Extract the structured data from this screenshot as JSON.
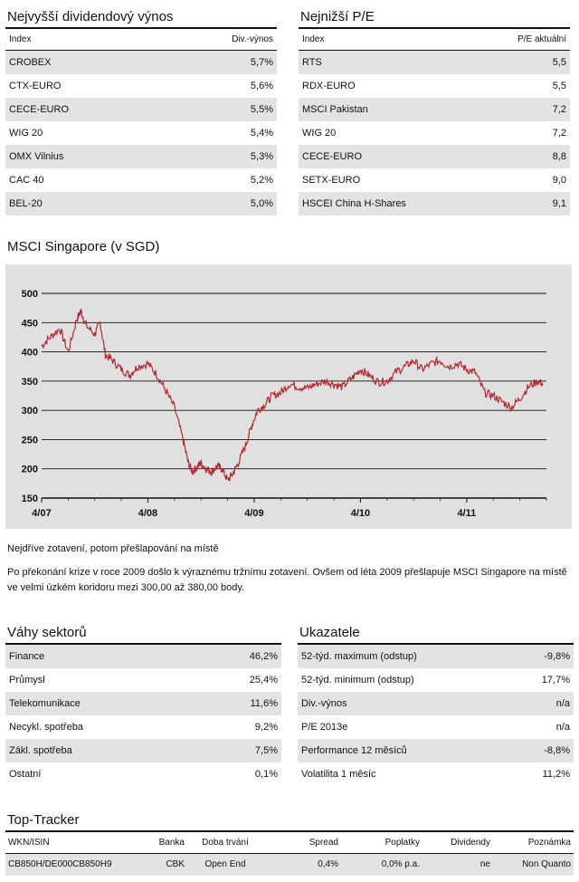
{
  "top_left": {
    "title": "Nejvyšší dividendový výnos",
    "col1": "Index",
    "col2": "Div.-výnos",
    "rows": [
      {
        "name": "CROBEX",
        "value": "5,7%"
      },
      {
        "name": "CTX-EURO",
        "value": "5,6%"
      },
      {
        "name": "CECE-EURO",
        "value": "5,5%"
      },
      {
        "name": "WIG 20",
        "value": "5,4%"
      },
      {
        "name": "OMX Vilnius",
        "value": "5,3%"
      },
      {
        "name": "CAC 40",
        "value": "5,2%"
      },
      {
        "name": "BEL-20",
        "value": "5,0%"
      }
    ]
  },
  "top_right": {
    "title": "Nejnižší P/E",
    "col1": "Index",
    "col2": "P/E aktuální",
    "rows": [
      {
        "name": "RTS",
        "value": "5,5"
      },
      {
        "name": "RDX-EURO",
        "value": "5,5"
      },
      {
        "name": "MSCI Pakistan",
        "value": "7,2"
      },
      {
        "name": "WIG 20",
        "value": "7,2"
      },
      {
        "name": "CECE-EURO",
        "value": "8,8"
      },
      {
        "name": "SETX-EURO",
        "value": "9,0"
      },
      {
        "name": "HSCEI China H-Shares",
        "value": "9,1"
      }
    ]
  },
  "chart_title": "MSCI Singapore (v SGD)",
  "chart_data": {
    "type": "line",
    "title": "MSCI Singapore (v SGD)",
    "x_ticks": [
      "4/07",
      "4/08",
      "4/09",
      "4/10",
      "4/11"
    ],
    "y_ticks": [
      "500",
      "450",
      "400",
      "350",
      "300",
      "250",
      "200",
      "150"
    ],
    "ylim": [
      150,
      500
    ],
    "xlim": [
      2007.25,
      2012.0
    ],
    "grid": true,
    "line_color": "#b3282d",
    "series": [
      {
        "x": [
          2007.25,
          2007.33,
          2007.42,
          2007.5,
          2007.58,
          2007.62,
          2007.67,
          2007.75,
          2007.8,
          2007.85,
          2007.92,
          2008.0,
          2008.08,
          2008.15,
          2008.25,
          2008.33,
          2008.4,
          2008.5,
          2008.58,
          2008.63,
          2008.67,
          2008.72,
          2008.75,
          2008.8,
          2008.85,
          2008.9,
          2008.95,
          2009.0,
          2009.05,
          2009.1,
          2009.17,
          2009.22,
          2009.28,
          2009.35,
          2009.42,
          2009.5,
          2009.58,
          2009.67,
          2009.75,
          2009.83,
          2009.92,
          2010.0,
          2010.08,
          2010.17,
          2010.25,
          2010.33,
          2010.42,
          2010.5,
          2010.58,
          2010.67,
          2010.75,
          2010.83,
          2010.92,
          2011.0,
          2011.08,
          2011.17,
          2011.25,
          2011.33,
          2011.42,
          2011.5,
          2011.58,
          2011.67,
          2011.75,
          2011.83,
          2011.92,
          2011.97
        ],
        "y": [
          410,
          425,
          440,
          400,
          455,
          470,
          445,
          430,
          450,
          395,
          385,
          370,
          360,
          375,
          380,
          362,
          340,
          305,
          250,
          210,
          195,
          205,
          210,
          200,
          195,
          205,
          200,
          180,
          192,
          210,
          240,
          270,
          300,
          310,
          325,
          330,
          345,
          340,
          338,
          345,
          350,
          345,
          340,
          355,
          370,
          360,
          348,
          350,
          365,
          375,
          385,
          370,
          380,
          385,
          375,
          380,
          370,
          365,
          330,
          325,
          315,
          305,
          320,
          340,
          350,
          345
        ]
      }
    ]
  },
  "chart_caption": "Nejdříve zotavení, potom přešlapování na místě",
  "chart_text": "Po překonání krize v roce 2009 došlo k výraznému tržnímu zotavení. Ovšem od léta 2009 přešlapuje MSCI Singapore na místě ve velmi úzkém koridoru mezi 300,00 až 380,00 body.",
  "sectors": {
    "title": "Váhy sektorů",
    "rows": [
      {
        "name": "Finance",
        "value": "46,2%"
      },
      {
        "name": "Průmysl",
        "value": "25,4%"
      },
      {
        "name": "Telekomunikace",
        "value": "11,6%"
      },
      {
        "name": "Necykl. spotřeba",
        "value": "9,2%"
      },
      {
        "name": "Zákl. spotřeba",
        "value": "7,5%"
      },
      {
        "name": "Ostatní",
        "value": "0,1%"
      }
    ]
  },
  "indicators": {
    "title": "Ukazatele",
    "rows": [
      {
        "name": "52-týd. maximum (odstup)",
        "value": "-9,8%"
      },
      {
        "name": "52-týd. minimum (odstup)",
        "value": "17,7%"
      },
      {
        "name": "Div.-výnos",
        "value": "n/a"
      },
      {
        "name": "P/E 2013e",
        "value": "n/a"
      },
      {
        "name": "Performance 12 měsíců",
        "value": "-8,8%"
      },
      {
        "name": "Volatilita 1 měsíc",
        "value": "11,2%"
      }
    ]
  },
  "tracker": {
    "title": "Top-Tracker",
    "headers": [
      "WKN/ISIN",
      "Banka",
      "Doba trvání",
      "Spread",
      "Poplatky",
      "Dividendy",
      "Poznámka"
    ],
    "row": [
      "CB850H/DE000CB850H9",
      "CBK",
      "Open End",
      "0,4%",
      "0,0% p.a.",
      "ne",
      "Non Quanto"
    ]
  }
}
